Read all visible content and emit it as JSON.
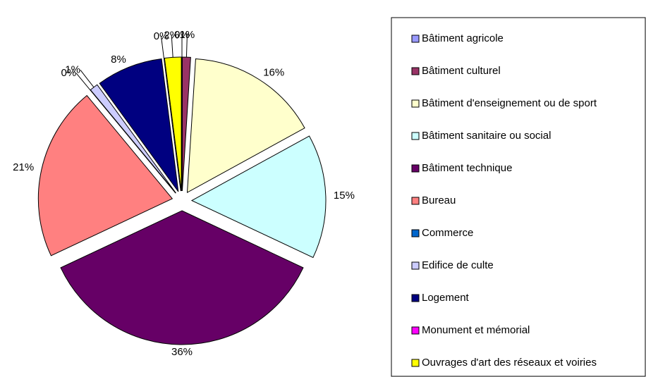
{
  "chart_data": {
    "type": "pie",
    "categories": [
      "Bâtiment agricole",
      "Bâtiment culturel",
      "Bâtiment d'enseignement ou de sport",
      "Bâtiment sanitaire ou social",
      "Bâtiment technique",
      "Bureau",
      "Commerce",
      "Edifice de culte",
      "Logement",
      "Monument et mémorial",
      "Ouvrages d'art des réseaux et voiries"
    ],
    "values": [
      0,
      1,
      16,
      15,
      36,
      21,
      0,
      1,
      8,
      0,
      2
    ],
    "value_labels": [
      "0%",
      "1%",
      "16%",
      "15%",
      "36%",
      "21%",
      "0%",
      "1%",
      "8%",
      "0%",
      "2%"
    ],
    "colors": [
      "#9999ff",
      "#993366",
      "#ffffcc",
      "#ccffff",
      "#660066",
      "#ff8080",
      "#0066cc",
      "#ccccff",
      "#000080",
      "#ff00ff",
      "#ffff00"
    ],
    "legend": "right"
  }
}
